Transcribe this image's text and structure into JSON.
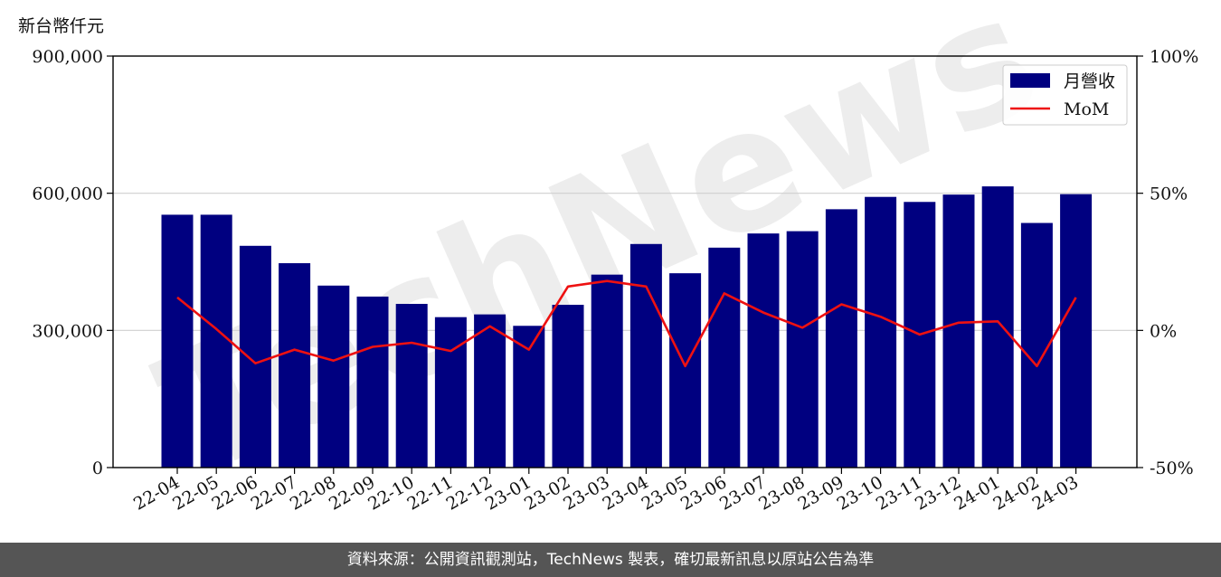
{
  "unit_label": "新台幣仟元",
  "footer_text": "資料來源：公開資訊觀測站，TechNews 製表，確切最新訊息以原站公告為準",
  "watermark_text": "TechNews",
  "chart_data": {
    "type": "bar",
    "categories": [
      "22-04",
      "22-05",
      "22-06",
      "22-07",
      "22-08",
      "22-09",
      "22-10",
      "22-11",
      "22-12",
      "23-01",
      "23-02",
      "23-03",
      "23-04",
      "23-05",
      "23-06",
      "23-07",
      "23-08",
      "23-09",
      "23-10",
      "23-11",
      "23-12",
      "24-01",
      "24-02",
      "24-03"
    ],
    "series": [
      {
        "name": "月營收",
        "type": "bar",
        "axis": "left",
        "color": "#000080",
        "values": [
          553000,
          553000,
          485000,
          447000,
          398000,
          374000,
          358000,
          329000,
          335000,
          310000,
          356000,
          422000,
          489000,
          425000,
          481000,
          512000,
          517000,
          565000,
          592000,
          581000,
          597000,
          615000,
          535000,
          598000
        ]
      },
      {
        "name": "MoM",
        "type": "line",
        "axis": "right",
        "color": "#ee1111",
        "values": [
          12.0,
          0.5,
          -12.0,
          -7.0,
          -11.0,
          -6.0,
          -4.5,
          -7.5,
          1.5,
          -7.0,
          16.0,
          18.0,
          16.0,
          -13.0,
          13.5,
          6.5,
          1.0,
          9.5,
          5.0,
          -1.5,
          2.8,
          3.3,
          -13.0,
          12.0
        ]
      }
    ],
    "y_left": {
      "ylim": [
        0,
        900000
      ],
      "ticks": [
        "0",
        "300,000",
        "600,000",
        "900,000"
      ],
      "tick_values": [
        0,
        300000,
        600000,
        900000
      ]
    },
    "y_right": {
      "ylim": [
        -50,
        100
      ],
      "ticks": [
        "-50%",
        "0%",
        "50%",
        "100%"
      ],
      "tick_values": [
        -50,
        0,
        50,
        100
      ]
    },
    "grid": "horizontal",
    "legend_placement": "top-right",
    "title": "",
    "xlabel": "",
    "ylabel": ""
  }
}
